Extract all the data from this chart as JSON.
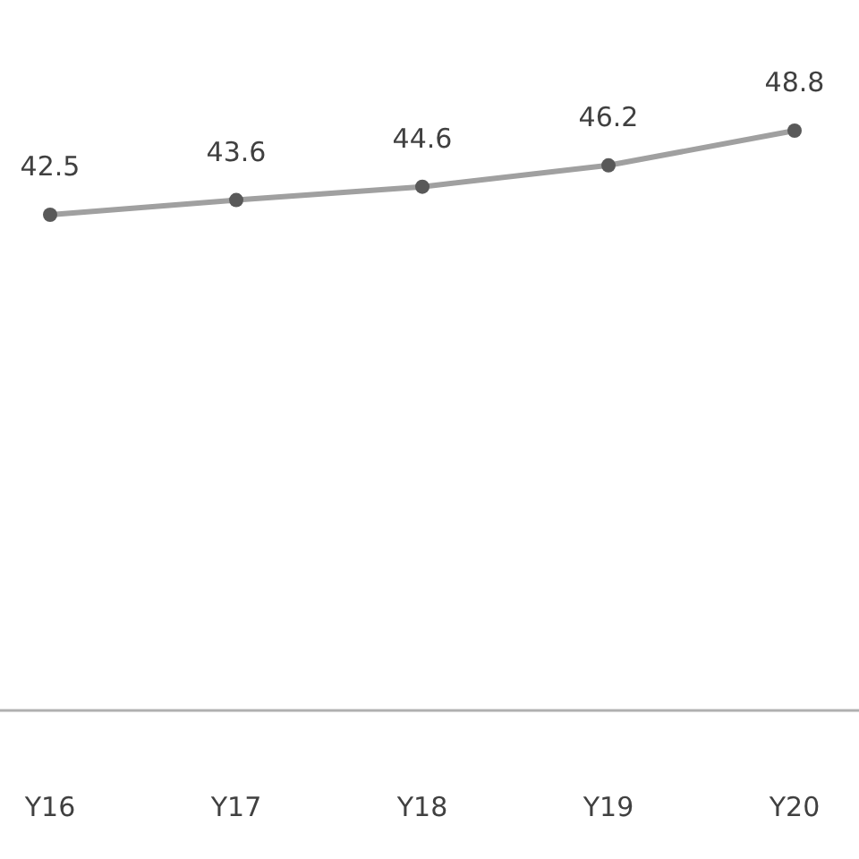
{
  "chart_data": {
    "type": "line",
    "categories": [
      "Y16",
      "Y17",
      "Y18",
      "Y19",
      "Y20"
    ],
    "series": [
      {
        "color": "#a0a0a0",
        "values": [
          42.5,
          43.6,
          44.6,
          46.2,
          48.8
        ]
      }
    ],
    "marker": "circle",
    "line_style": "solid",
    "data_labels": true,
    "tick_labels": "x"
  }
}
